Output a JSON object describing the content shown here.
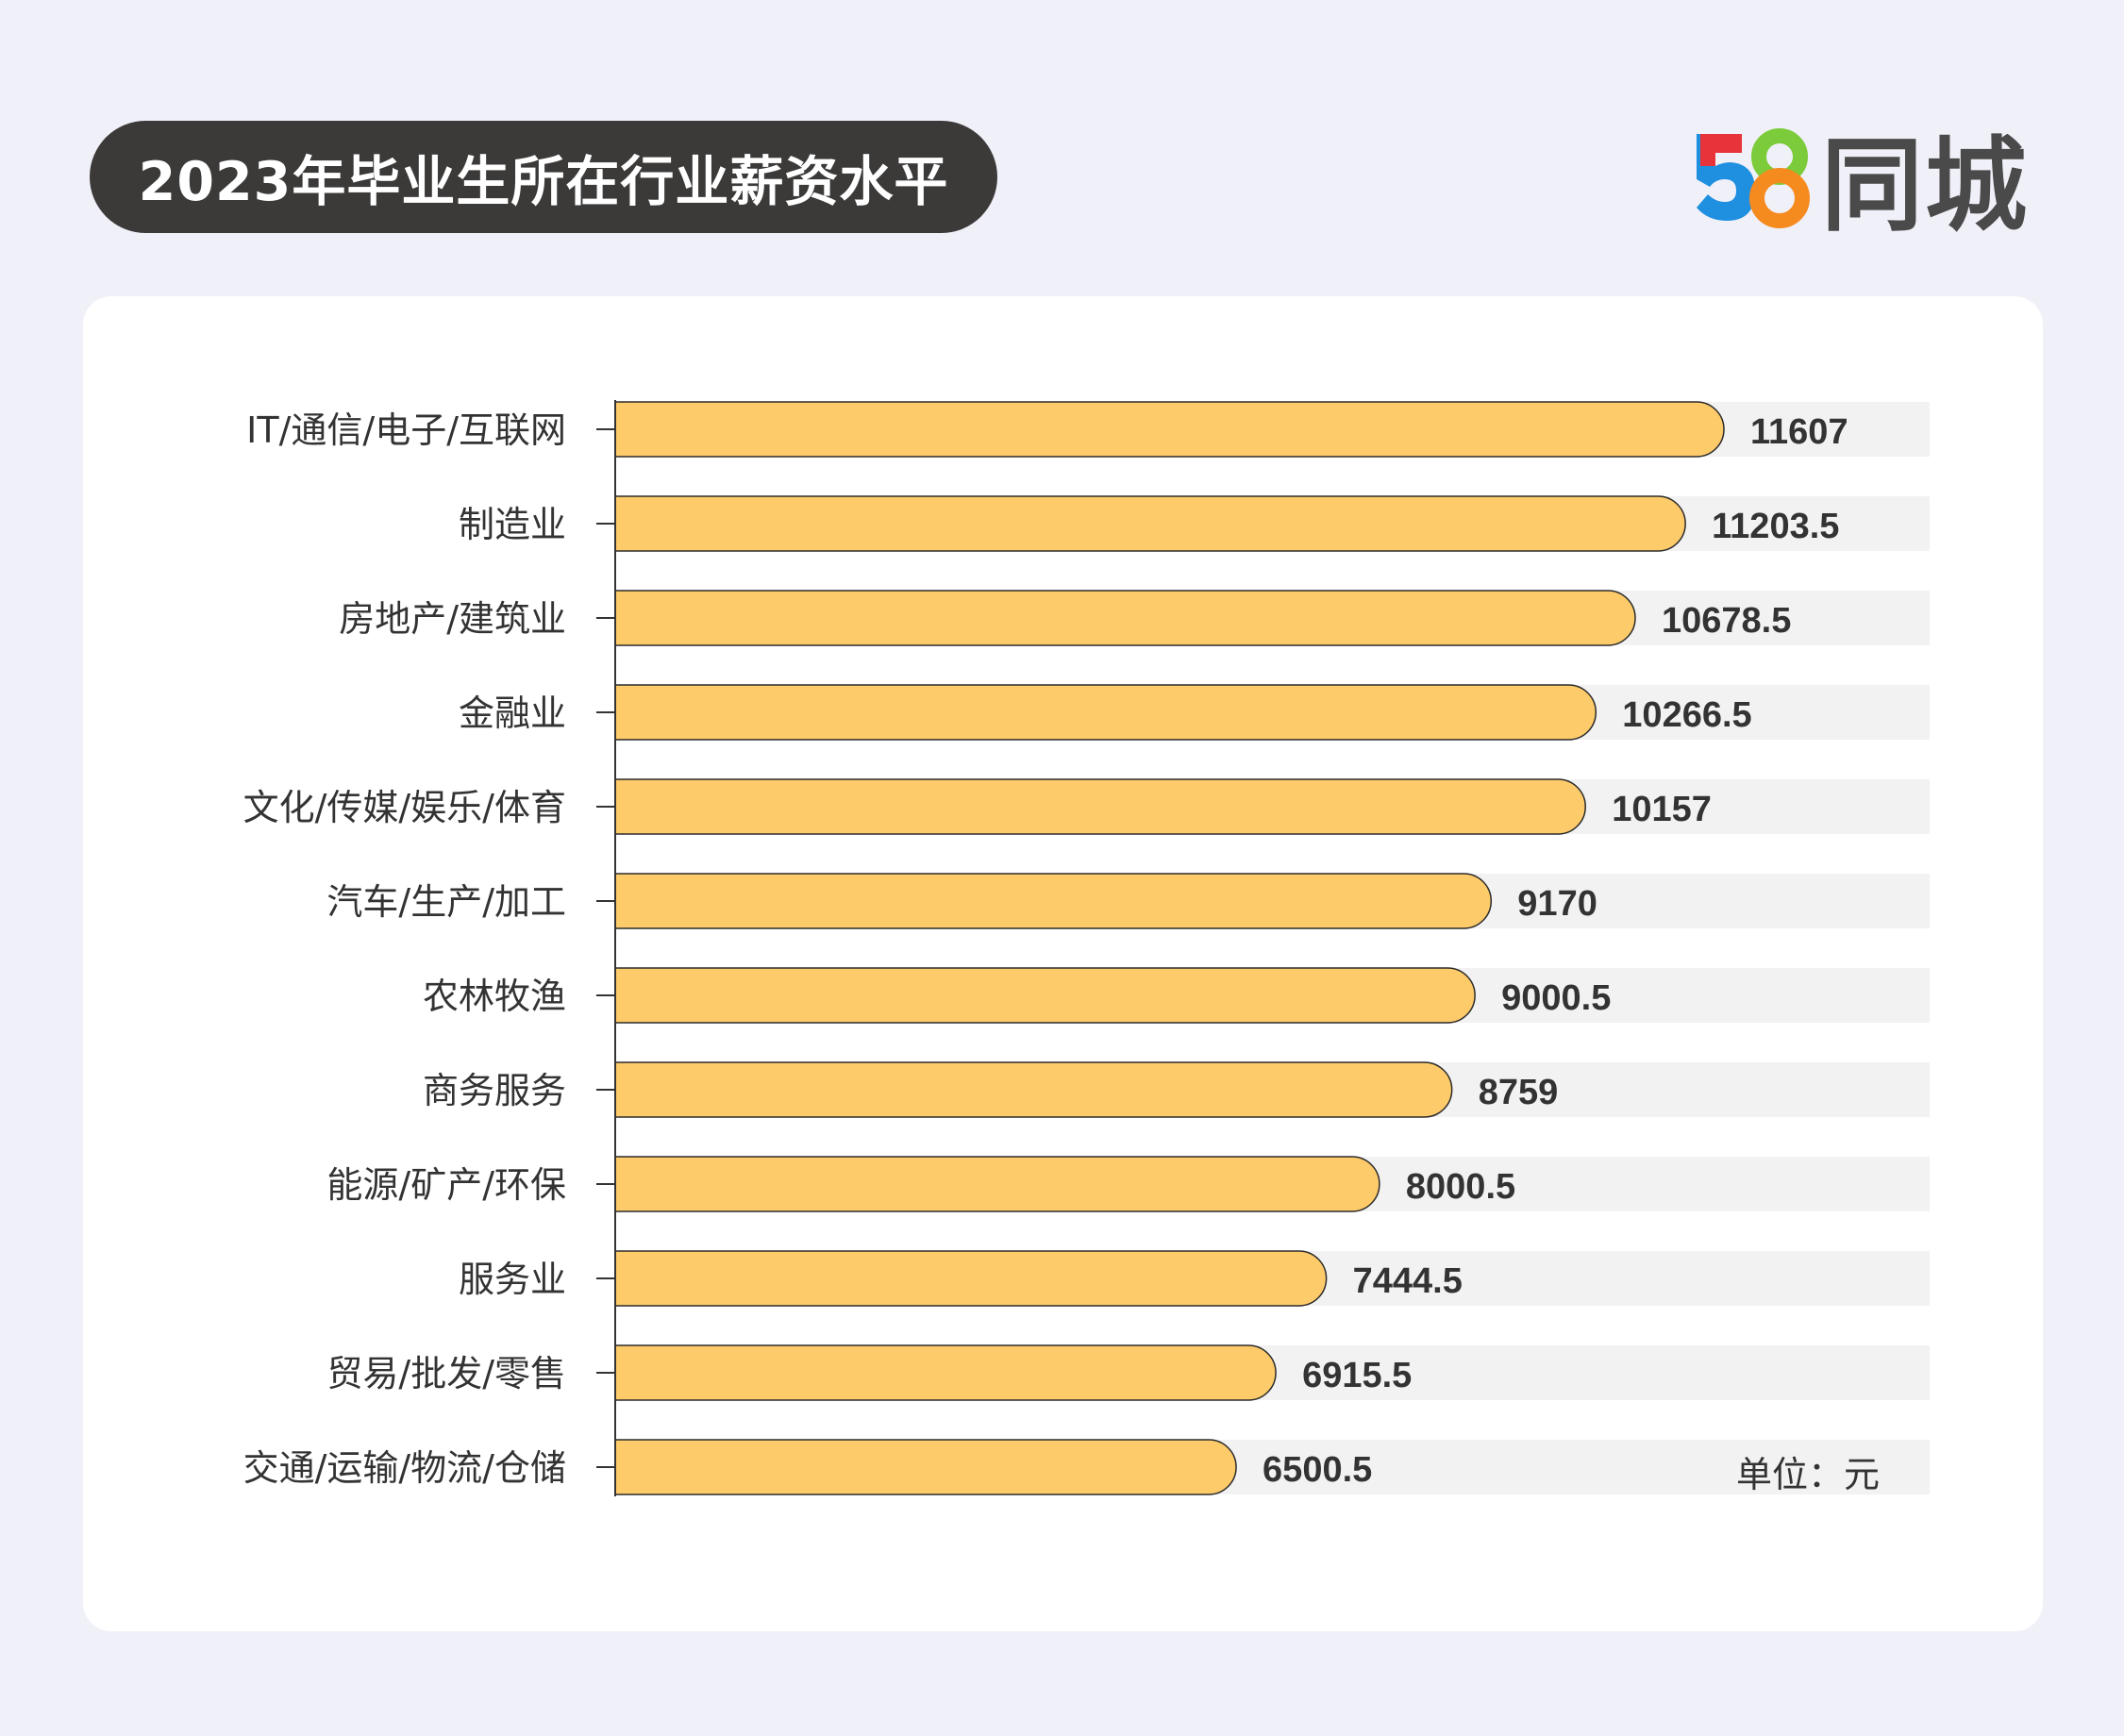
{
  "header": {
    "title": "2023年毕业生所在行业薪资水平",
    "logo_number": "58",
    "logo_text": "同城"
  },
  "unit_label": "单位：元",
  "colors": {
    "bar": "#fecb6a",
    "bar_stroke": "#2b2b2b",
    "track": "#f2f2f2",
    "logo_blue": "#1f8fe0",
    "logo_red": "#e8333a",
    "logo_green": "#7ccb3a",
    "logo_orange": "#f58a1f"
  },
  "chart_data": {
    "type": "bar",
    "orientation": "horizontal",
    "title": "2023年毕业生所在行业薪资水平",
    "categories": [
      "IT/通信/电子/互联网",
      "制造业",
      "房地产/建筑业",
      "金融业",
      "文化/传媒/娱乐/体育",
      "汽车/生产/加工",
      "农林牧渔",
      "商务服务",
      "能源/矿产/环保",
      "服务业",
      "贸易/批发/零售",
      "交通/运输/物流/仓储"
    ],
    "values": [
      11607,
      11203.5,
      10678.5,
      10266.5,
      10157,
      9170,
      9000.5,
      8759,
      8000.5,
      7444.5,
      6915.5,
      6500.5
    ],
    "value_labels": [
      "11607",
      "11203.5",
      "10678.5",
      "10266.5",
      "10157",
      "9170",
      "9000.5",
      "8759",
      "8000.5",
      "7444.5",
      "6915.5",
      "6500.5"
    ],
    "unit": "元",
    "xlim": [
      0,
      14000
    ]
  }
}
